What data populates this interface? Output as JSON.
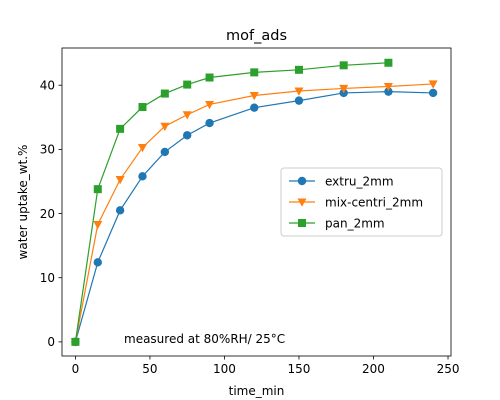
{
  "chart_data": {
    "type": "line",
    "title": "mof_ads",
    "xlabel": "time_min",
    "ylabel": "water uptake_wt.%",
    "xlim": [
      -9,
      252
    ],
    "ylim": [
      -2.2,
      45.8
    ],
    "xticks": [
      0,
      50,
      100,
      150,
      200,
      250
    ],
    "yticks": [
      0,
      10,
      20,
      30,
      40
    ],
    "grid": false,
    "legend_position": "center-right",
    "annotation": "measured at 80%RH/ 25°C",
    "series": [
      {
        "name": "extru_2mm",
        "color": "#1f77b4",
        "marker": "circle",
        "x": [
          0,
          15,
          30,
          45,
          60,
          75,
          90,
          120,
          150,
          180,
          210,
          240
        ],
        "y": [
          0,
          12.4,
          20.5,
          25.8,
          29.6,
          32.2,
          34.1,
          36.5,
          37.6,
          38.8,
          39.0,
          38.8
        ]
      },
      {
        "name": "mix-centri_2mm",
        "color": "#ff7f0e",
        "marker": "triangle-down",
        "x": [
          0,
          15,
          30,
          45,
          60,
          75,
          90,
          120,
          150,
          180,
          210,
          240
        ],
        "y": [
          0,
          18.3,
          25.3,
          30.3,
          33.6,
          35.4,
          37.0,
          38.4,
          39.1,
          39.5,
          39.8,
          40.2
        ]
      },
      {
        "name": "pan_2mm",
        "color": "#2ca02c",
        "marker": "square",
        "x": [
          0,
          15,
          30,
          45,
          60,
          75,
          90,
          120,
          150,
          180,
          210
        ],
        "y": [
          0,
          23.8,
          33.2,
          36.6,
          38.7,
          40.1,
          41.2,
          42.0,
          42.4,
          43.1,
          43.5
        ]
      }
    ]
  }
}
